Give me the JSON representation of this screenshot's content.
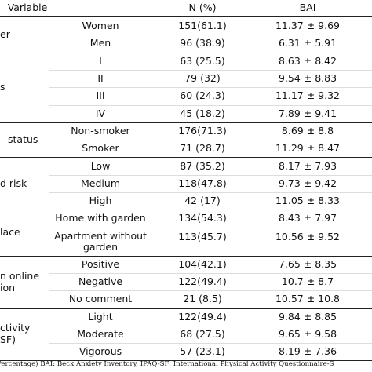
{
  "header": [
    "Variable",
    "N (%)",
    "BAI"
  ],
  "groups": [
    {
      "label": [
        "er"
      ],
      "rows": [
        [
          "Women",
          "151(61.1)",
          "11.37 ± 9.69"
        ],
        [
          "Men",
          "96 (38.9)",
          "6.31 ± 5.91"
        ]
      ]
    },
    {
      "label": [
        "s"
      ],
      "rows": [
        [
          "I",
          "63 (25.5)",
          "8.63 ± 8.42"
        ],
        [
          "II",
          "79 (32)",
          "9.54 ± 8.83"
        ],
        [
          "III",
          "60 (24.3)",
          "11.17 ± 9.32"
        ],
        [
          "IV",
          "45 (18.2)",
          "7.89 ± 9.41"
        ]
      ]
    },
    {
      "label": [
        "status"
      ],
      "rows": [
        [
          "Non-smoker",
          "176(71.3)",
          "8.69 ± 8.8"
        ],
        [
          "Smoker",
          "71 (28.7)",
          "11.29 ± 8.47"
        ]
      ]
    },
    {
      "label": [
        "d risk"
      ],
      "rows": [
        [
          "Low",
          "87 (35.2)",
          "8.17 ± 7.93"
        ],
        [
          "Medium",
          "118(47.8)",
          "9.73 ± 9.42"
        ],
        [
          "High",
          "42 (17)",
          "11.05 ± 8.33"
        ]
      ]
    },
    {
      "label": [
        "lace"
      ],
      "rows": [
        [
          "Home with garden",
          "134(54.3)",
          "8.43 ± 7.97"
        ],
        [
          "Apartment without garden",
          "113(45.7)",
          "10.56 ± 9.52"
        ]
      ]
    },
    {
      "label": [
        "n online",
        "ion"
      ],
      "rows": [
        [
          "Positive",
          "104(42.1)",
          "7.65 ± 8.35"
        ],
        [
          "Negative",
          "122(49.4)",
          "10.7 ± 8.7"
        ],
        [
          "No comment",
          "21 (8.5)",
          "10.57 ± 10.8"
        ]
      ]
    },
    {
      "label": [
        "ctivity",
        "SF)"
      ],
      "rows": [
        [
          "Light",
          "122(49.4)",
          "9.84 ± 8.85"
        ],
        [
          "Moderate",
          "68 (27.5)",
          "9.65 ± 9.58"
        ],
        [
          "Vigorous",
          "57 (23.1)",
          "8.19 ± 7.36"
        ]
      ]
    }
  ],
  "footer": "Percentage) BAI: Beck Anxiety Inventory, IPAQ-SF: International Physical Activity Questionnaire-S"
}
